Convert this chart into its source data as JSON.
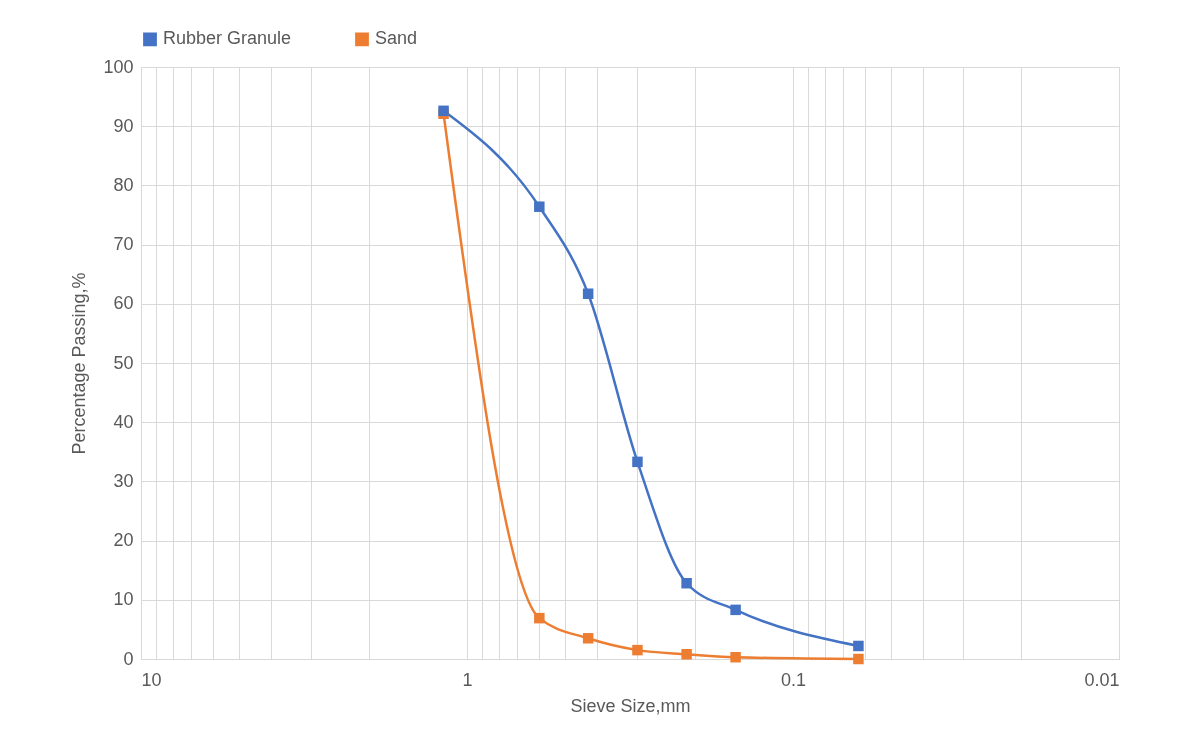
{
  "chart_data": {
    "type": "line",
    "xlabel": "Sieve Size,mm",
    "ylabel": "Percentage Passing,%",
    "log": "x",
    "xlim": [
      10,
      0.01
    ],
    "xticks": [
      10,
      {
        "value": 9,
        "label": null
      },
      {
        "value": 8,
        "label": null
      },
      {
        "value": 7,
        "label": null
      },
      {
        "value": 6,
        "label": null
      },
      {
        "value": 5,
        "label": null
      },
      {
        "value": 4,
        "label": null
      },
      {
        "value": 3,
        "label": null
      },
      {
        "value": 2,
        "label": null
      },
      1,
      {
        "value": 0.9,
        "label": null
      },
      {
        "value": 0.8,
        "label": null
      },
      {
        "value": 0.7,
        "label": null
      },
      {
        "value": 0.6,
        "label": null
      },
      {
        "value": 0.5,
        "label": null
      },
      {
        "value": 0.4,
        "label": null
      },
      {
        "value": 0.3,
        "label": null
      },
      {
        "value": 0.2,
        "label": null
      },
      0.1,
      {
        "value": 0.09,
        "label": null
      },
      {
        "value": 0.08,
        "label": null
      },
      {
        "value": 0.07,
        "label": null
      },
      {
        "value": 0.06,
        "label": null
      },
      {
        "value": 0.05,
        "label": null
      },
      {
        "value": 0.04,
        "label": null
      },
      {
        "value": 0.03,
        "label": null
      },
      {
        "value": 0.02,
        "label": null
      },
      0.01
    ],
    "ylim": [
      0,
      100
    ],
    "yticks": [
      0,
      10,
      20,
      30,
      40,
      50,
      60,
      70,
      80,
      90,
      100
    ],
    "x": [
      1.18,
      0.6,
      0.425,
      0.3,
      0.212,
      0.15,
      0.063
    ],
    "series": [
      {
        "name": "Rubber Granule",
        "color": "#4472c4",
        "values": [
          92.6,
          76.4,
          61.7,
          33.3,
          12.8,
          8.3,
          2.2
        ]
      },
      {
        "name": "Sand",
        "color": "#ed7d31",
        "values": [
          92.1,
          6.9,
          3.5,
          1.5,
          0.8,
          0.3,
          0
        ]
      }
    ],
    "grid": true,
    "legend": "top",
    "marker": "square",
    "line_style": "solid"
  }
}
